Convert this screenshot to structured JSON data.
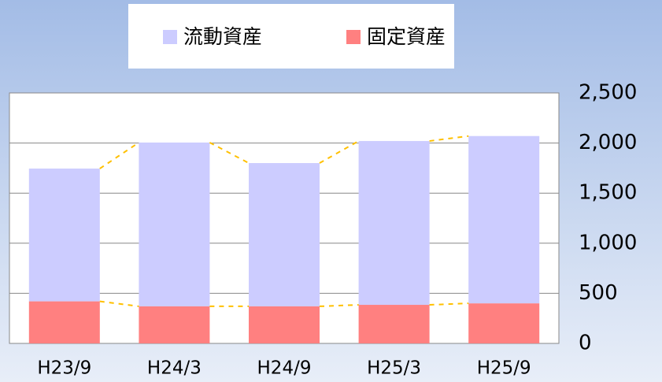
{
  "chart_data": {
    "type": "stacked_bar",
    "categories": [
      "H23/9",
      "H24/3",
      "H24/9",
      "H25/3",
      "H25/9"
    ],
    "series": [
      {
        "name": "固定資産",
        "color": "#ff8080",
        "values": [
          420,
          370,
          370,
          385,
          400
        ]
      },
      {
        "name": "流動資産",
        "color": "#ccccff",
        "values": [
          1325,
          1635,
          1430,
          1635,
          1670
        ]
      }
    ],
    "ylim": [
      0,
      2500
    ],
    "yticks": [
      0,
      500,
      {
        "value": 1000,
        "label": "1,000"
      },
      {
        "value": 1500,
        "label": "1,500"
      },
      {
        "value": 2000,
        "label": "2,000"
      },
      {
        "value": 2500,
        "label": "2,500"
      }
    ],
    "grid": true,
    "legend": "top",
    "connector_color": "#ffc000"
  }
}
